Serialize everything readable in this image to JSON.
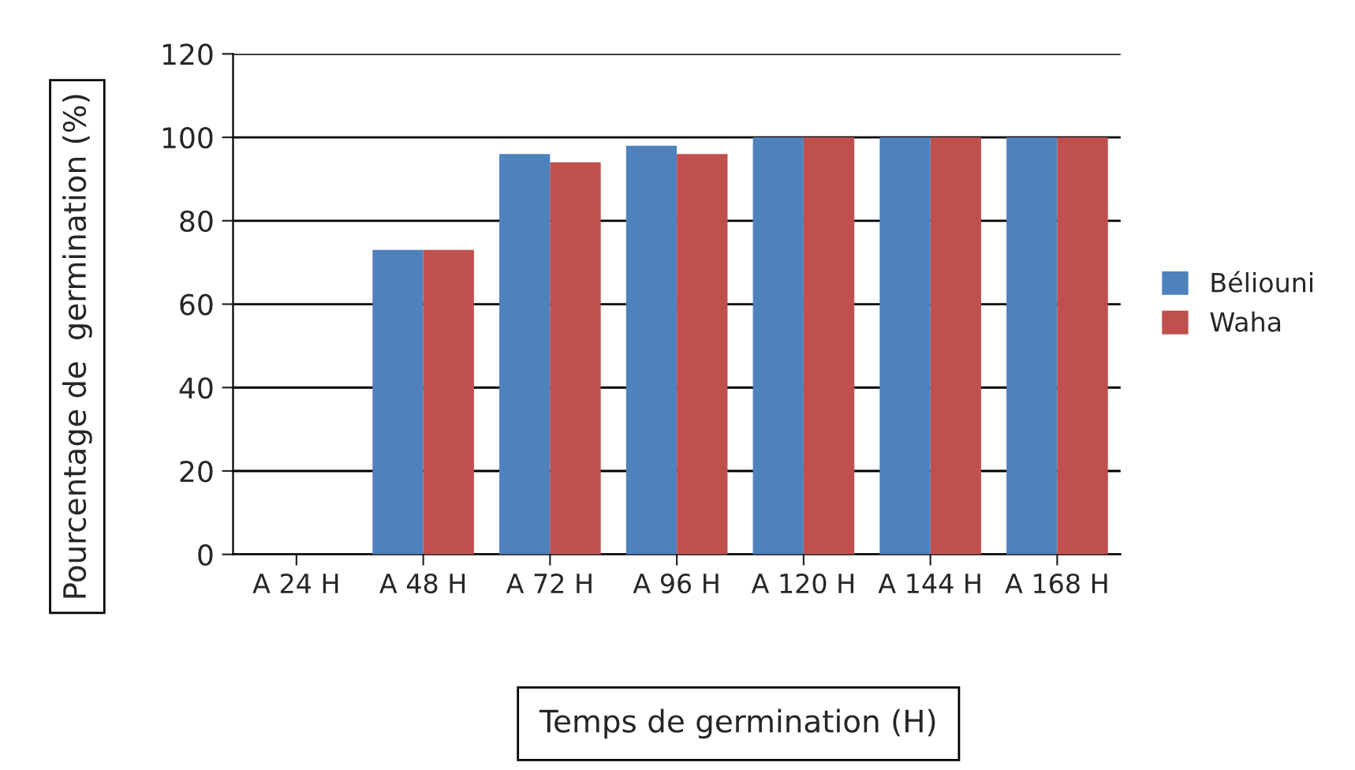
{
  "chart_data": {
    "type": "bar",
    "xlabel": "Temps de germination (H)",
    "ylabel": "Pourcentage de  germination (%)",
    "categories": [
      "A 24 H",
      "A 48 H",
      "A 72 H",
      "A 96 H",
      "A 120 H",
      "A 144 H",
      "A 168 H"
    ],
    "series": [
      {
        "name": "Béliouni",
        "color": "#4f81bd",
        "values": [
          0,
          73,
          96,
          98,
          100,
          100,
          100
        ]
      },
      {
        "name": "Waha",
        "color": "#c0504d",
        "values": [
          0,
          73,
          94,
          96,
          100,
          100,
          100
        ]
      }
    ],
    "ylim": [
      0,
      120
    ],
    "yticks": [
      0,
      20,
      40,
      60,
      80,
      100,
      120
    ],
    "grid": "y",
    "legend": "right"
  }
}
